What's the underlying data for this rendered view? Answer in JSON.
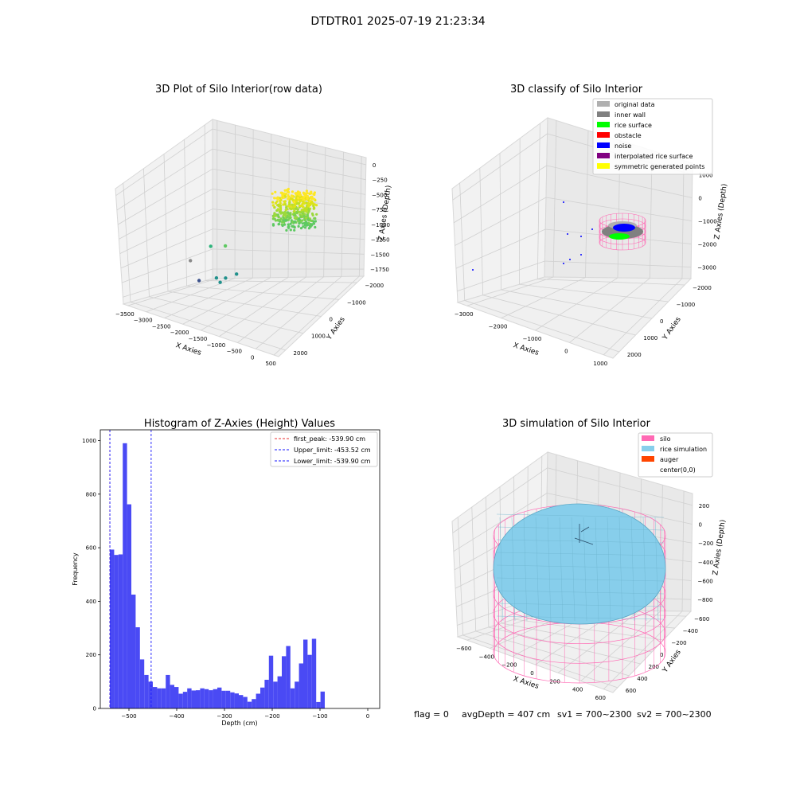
{
  "suptitle": "DTDTR01 2025-07-19 21:23:34",
  "status_line": {
    "flag": "flag = 0",
    "avg": "avgDepth = 407 cm",
    "sv1": "sv1 = 700~2300",
    "sv2": "sv2 = 700~2300"
  },
  "chart_data": [
    {
      "type": "scatter",
      "title": "3D Plot of Silo Interior(row data)",
      "xlabel": "X Axies",
      "ylabel": "Y Axies",
      "zlabel": "Z Axies (Depth)",
      "xticks": [
        "−3500",
        "−3000",
        "−2500",
        "−2000",
        "−1500",
        "−1000",
        "−500",
        "0",
        "500"
      ],
      "yticks": [
        "−2000",
        "−1000",
        "0",
        "1000",
        "2000"
      ],
      "zticks": [
        "0",
        "−250",
        "−500",
        "−750",
        "−1000",
        "−1250",
        "−1500",
        "−1750"
      ],
      "colormap": "viridis",
      "outliers": [
        {
          "x": -3500,
          "y": 1500,
          "z": -1900,
          "color": "#3b518b"
        },
        {
          "x": -2600,
          "y": -700,
          "z": -1250,
          "color": "#8a8a8a"
        },
        {
          "x": -2300,
          "y": -200,
          "z": -1050,
          "color": "#2fb47c"
        },
        {
          "x": -1900,
          "y": -200,
          "z": -1000,
          "color": "#5ec962"
        },
        {
          "x": -2400,
          "y": 300,
          "z": -1650,
          "color": "#21918c"
        },
        {
          "x": -2200,
          "y": 400,
          "z": -1650,
          "color": "#21918c"
        },
        {
          "x": -2000,
          "y": 600,
          "z": -1600,
          "color": "#21918c"
        },
        {
          "x": -2400,
          "y": 500,
          "z": -1750,
          "color": "#21918c"
        }
      ],
      "cluster": {
        "x_range": [
          -450,
          450
        ],
        "y_range": [
          -450,
          450
        ],
        "z_range": [
          -700,
          -450
        ]
      }
    },
    {
      "type": "scatter",
      "title": "3D classify of Silo Interior",
      "xlabel": "X Axies",
      "ylabel": "Y Axies",
      "zlabel": "Z Axies (Depth)",
      "xticks": [
        "−3000",
        "−2000",
        "−1000",
        "0",
        "1000"
      ],
      "yticks": [
        "−2000",
        "−1000",
        "0",
        "1000",
        "2000"
      ],
      "zticks": [
        "1000",
        "0",
        "−1000",
        "−2000",
        "−3000"
      ],
      "legend": [
        {
          "label": "original data",
          "color": "#b0b0b0"
        },
        {
          "label": "inner wall",
          "color": "#808080"
        },
        {
          "label": "rice surface",
          "color": "#00ff00"
        },
        {
          "label": "obstacle",
          "color": "#ff0000"
        },
        {
          "label": "noise",
          "color": "#0000ff"
        },
        {
          "label": "interpolated rice surface",
          "color": "#800080"
        },
        {
          "label": "symmetric generated points",
          "color": "#ffff00"
        }
      ],
      "legend_loc": "upper right"
    },
    {
      "type": "bar",
      "title": "Histogram of Z-Axies (Height) Values",
      "xlabel": "Depth (cm)",
      "ylabel": "Frequency",
      "xlim": [
        -560,
        25
      ],
      "ylim": [
        0,
        1040
      ],
      "xticks": [
        -500,
        -400,
        -300,
        -200,
        -100,
        0
      ],
      "yticks": [
        0,
        200,
        400,
        600,
        800,
        1000
      ],
      "bar_color": "#4a4af4",
      "bin_start": -540,
      "bin_width": 9,
      "values": [
        593,
        573,
        575,
        990,
        762,
        425,
        303,
        183,
        125,
        100,
        80,
        75,
        75,
        125,
        88,
        80,
        55,
        62,
        75,
        67,
        68,
        75,
        72,
        68,
        72,
        78,
        66,
        66,
        60,
        56,
        50,
        43,
        25,
        35,
        55,
        78,
        107,
        197,
        100,
        120,
        195,
        233,
        75,
        100,
        168,
        257,
        200,
        260,
        24,
        63
      ],
      "vlines": [
        {
          "value": -539.9,
          "label": "first_peak: -539.90 cm",
          "color": "#e83030",
          "style": "dashed"
        },
        {
          "value": -453.52,
          "label": "Upper_limit: -453.52 cm",
          "color": "#1a1aff",
          "style": "dashed"
        },
        {
          "value": -539.9,
          "label": "Lower_limit: -539.90 cm",
          "color": "#1a1aff",
          "style": "dashed"
        }
      ],
      "legend_loc": "upper right"
    },
    {
      "type": "scatter",
      "title": "3D simulation of Silo Interior",
      "xlabel": "X Axies",
      "ylabel": "Y Axies",
      "zlabel": "Z Axies (Depth)",
      "xticks": [
        "−600",
        "−400",
        "−200",
        "0",
        "200",
        "400",
        "600"
      ],
      "yticks": [
        "−600",
        "−400",
        "−200",
        "0",
        "200",
        "400",
        "600"
      ],
      "zticks": [
        "200",
        "0",
        "−200",
        "−400",
        "−600",
        "−800"
      ],
      "legend": [
        {
          "label": "silo",
          "color": "#ff69b4"
        },
        {
          "label": "rice simulation",
          "color": "#87ceeb"
        },
        {
          "label": "auger",
          "color": "#ff4500"
        },
        {
          "label": "center(0,0)",
          "color": ""
        }
      ],
      "legend_loc": "upper right"
    }
  ]
}
